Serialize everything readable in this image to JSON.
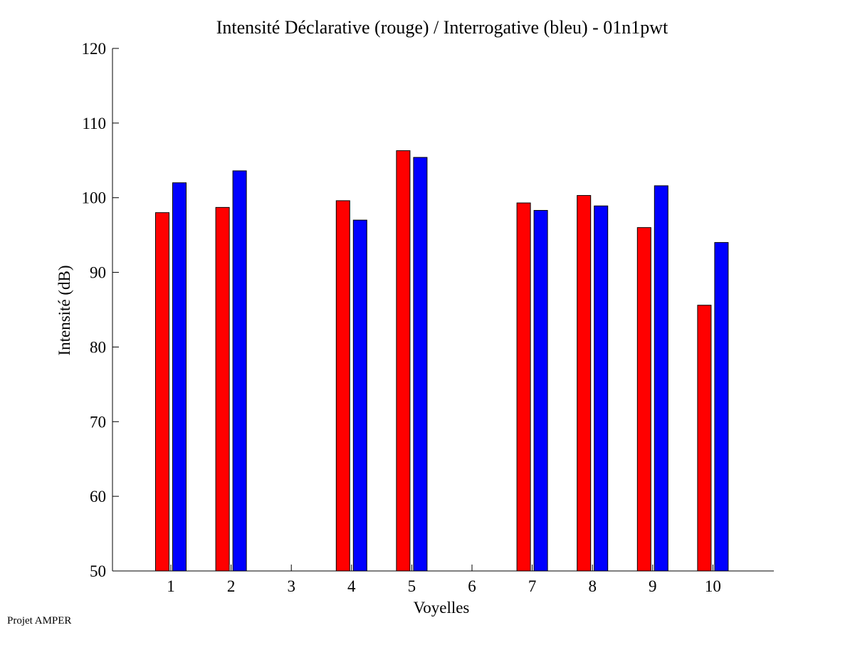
{
  "chart_data": {
    "type": "bar",
    "title": "Intensité Déclarative (rouge) / Interrogative (bleu) - 01n1pwt",
    "xlabel": "Voyelles",
    "ylabel": "Intensité (dB)",
    "categories": [
      "1",
      "2",
      "3",
      "4",
      "5",
      "6",
      "7",
      "8",
      "9",
      "10"
    ],
    "ylim": [
      50,
      120
    ],
    "yticks": [
      "50",
      "60",
      "70",
      "80",
      "90",
      "100",
      "110",
      "120"
    ],
    "series": [
      {
        "name": "Déclarative",
        "color": "#ff0000",
        "values": [
          98.0,
          98.7,
          null,
          99.6,
          106.3,
          null,
          99.3,
          100.3,
          96.0,
          85.6
        ]
      },
      {
        "name": "Interrogative",
        "color": "#0000ff",
        "values": [
          102.0,
          103.6,
          null,
          97.0,
          105.4,
          null,
          98.3,
          98.9,
          101.6,
          94.0
        ]
      }
    ]
  },
  "footer": {
    "note": "Projet AMPER"
  }
}
